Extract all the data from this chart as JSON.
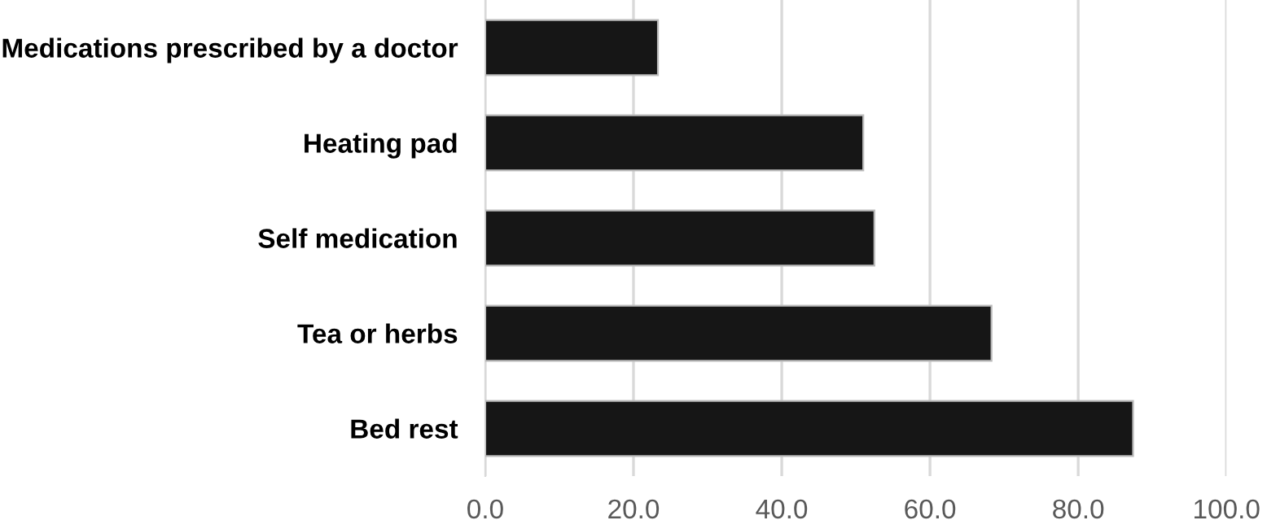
{
  "chart_data": {
    "type": "bar",
    "orientation": "horizontal",
    "categories": [
      "Medications prescribed by a doctor",
      "Heating pad",
      "Self medication",
      "Tea or herbs",
      "Bed rest"
    ],
    "values": [
      23.3,
      51.0,
      52.5,
      68.3,
      87.4
    ],
    "color": "#161616",
    "xlim": [
      0,
      100
    ],
    "xticks": [
      {
        "value": 0,
        "label": "0.0"
      },
      {
        "value": 20,
        "label": "20.0"
      },
      {
        "value": 40,
        "label": "40.0"
      },
      {
        "value": 60,
        "label": "60.0"
      },
      {
        "value": 80,
        "label": "80.0"
      },
      {
        "value": 100,
        "label": "100.0"
      }
    ],
    "grid": "x"
  }
}
